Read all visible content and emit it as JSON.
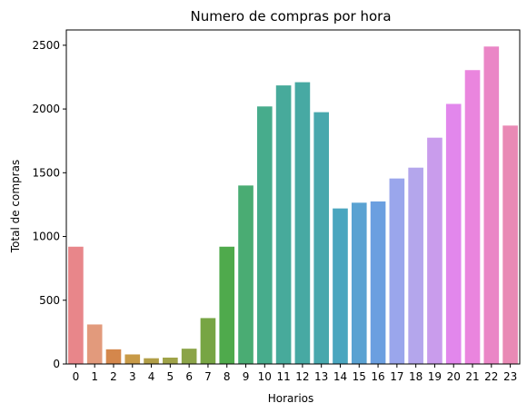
{
  "chart_data": {
    "type": "bar",
    "title": "Numero de compras por hora",
    "xlabel": "Horarios",
    "ylabel": "Total de compras",
    "categories": [
      "0",
      "1",
      "2",
      "3",
      "4",
      "5",
      "6",
      "7",
      "8",
      "9",
      "10",
      "11",
      "12",
      "13",
      "14",
      "15",
      "16",
      "17",
      "18",
      "19",
      "20",
      "21",
      "22",
      "23"
    ],
    "values": [
      920,
      310,
      115,
      75,
      45,
      50,
      120,
      360,
      920,
      1400,
      2020,
      2185,
      2210,
      1975,
      1220,
      1265,
      1275,
      1455,
      1540,
      1775,
      2040,
      2305,
      2490,
      1870
    ],
    "colors": [
      "#e8868a",
      "#e29a7c",
      "#d4874c",
      "#c89a47",
      "#b19e47",
      "#9fa348",
      "#8ba448",
      "#77a544",
      "#4faa4c",
      "#4aac73",
      "#47ac8c",
      "#47aa9b",
      "#47a9a3",
      "#48a8ad",
      "#4aa6bf",
      "#5aa2d2",
      "#6b9fe0",
      "#9aa6ec",
      "#b4a6ec",
      "#c99cec",
      "#e287ec",
      "#ea85de",
      "#ea86c6",
      "#e98ab5"
    ],
    "yticks": [
      0,
      500,
      1000,
      1500,
      2000,
      2500
    ],
    "ylim": [
      0,
      2620
    ],
    "grid": false,
    "legend": "none"
  }
}
